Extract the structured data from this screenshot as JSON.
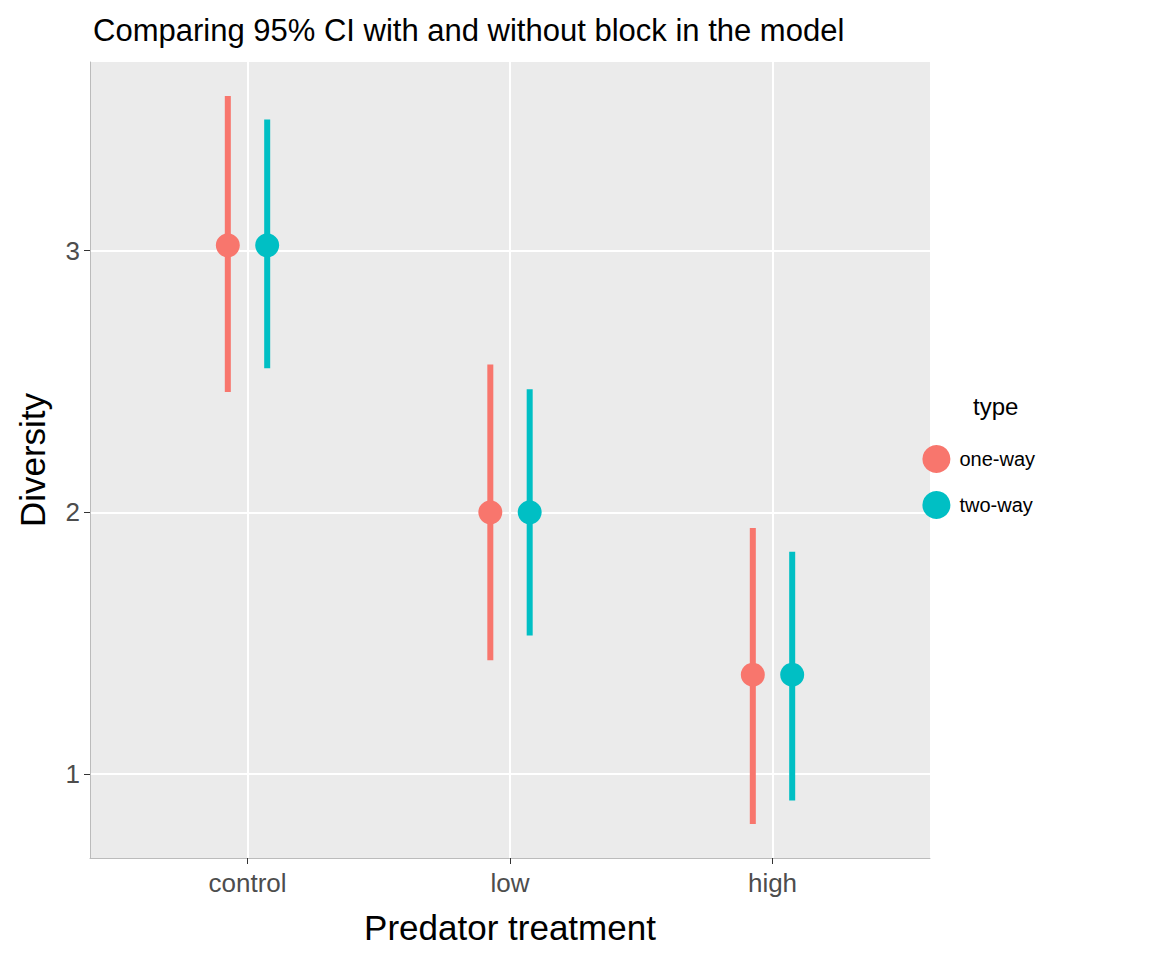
{
  "chart_data": {
    "type": "pointrange",
    "title": "Comparing 95% CI with and without block in the model",
    "x_label": "Predator treatment",
    "y_label": "Diversity",
    "legend_title": "type",
    "legend": "right",
    "grid": true,
    "categories": [
      "control",
      "low",
      "high"
    ],
    "ylim": [
      0.68,
      3.72
    ],
    "yticks": [
      1,
      2,
      3
    ],
    "series": [
      {
        "name": "one-way",
        "color": "#F8766D",
        "marker": "circle",
        "values": [
          3.02,
          2.0,
          1.38
        ],
        "ci_low": [
          2.46,
          1.435,
          0.81
        ],
        "ci_high": [
          3.59,
          2.565,
          1.94
        ]
      },
      {
        "name": "two-way",
        "color": "#00BFC4",
        "marker": "circle",
        "values": [
          3.02,
          2.0,
          1.38
        ],
        "ci_low": [
          2.55,
          1.53,
          0.9
        ],
        "ci_high": [
          3.5,
          2.47,
          1.85
        ]
      }
    ]
  }
}
